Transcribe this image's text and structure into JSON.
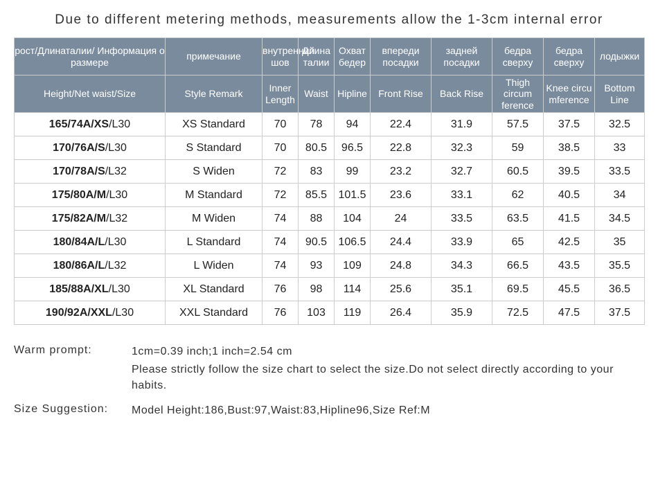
{
  "title": "Due to different metering methods, measurements allow the 1-3cm internal error",
  "colors": {
    "header_bg": "#7a8b9e",
    "header_text": "#ffffff",
    "border": "#cccccc",
    "cell_bg": "#ffffff",
    "cell_text": "#222222",
    "title_text": "#333333"
  },
  "columns": {
    "ru": [
      "рост/Длинаталии/ Информация о размере",
      "примечание",
      "внутренний шов",
      "Длина талии",
      "Охват бедер",
      "впереди посадки",
      "задней посадки",
      "бедра сверху",
      "бедра сверху",
      "лодыжки"
    ],
    "en": [
      "Height/Net waist/Size",
      "Style Remark",
      "Inner Length",
      "Waist",
      "Hipline",
      "Front Rise",
      "Back Rise",
      "Thigh circum ference",
      "Knee circu mference",
      "Bottom Line"
    ]
  },
  "rows": [
    {
      "size_main": "165/74A/XS",
      "size_suffix": "/L30",
      "remark": "XS Standard",
      "inner": "70",
      "waist": "78",
      "hip": "94",
      "front": "22.4",
      "back": "31.9",
      "thigh": "57.5",
      "knee": "37.5",
      "bottom": "32.5"
    },
    {
      "size_main": "170/76A/S",
      "size_suffix": "/L30",
      "remark": "S Standard",
      "inner": "70",
      "waist": "80.5",
      "hip": "96.5",
      "front": "22.8",
      "back": "32.3",
      "thigh": "59",
      "knee": "38.5",
      "bottom": "33"
    },
    {
      "size_main": "170/78A/S",
      "size_suffix": "/L32",
      "remark": "S Widen",
      "inner": "72",
      "waist": "83",
      "hip": "99",
      "front": "23.2",
      "back": "32.7",
      "thigh": "60.5",
      "knee": "39.5",
      "bottom": "33.5"
    },
    {
      "size_main": "175/80A/M",
      "size_suffix": "/L30",
      "remark": "M Standard",
      "inner": "72",
      "waist": "85.5",
      "hip": "101.5",
      "front": "23.6",
      "back": "33.1",
      "thigh": "62",
      "knee": "40.5",
      "bottom": "34"
    },
    {
      "size_main": "175/82A/M",
      "size_suffix": "/L32",
      "remark": "M Widen",
      "inner": "74",
      "waist": "88",
      "hip": "104",
      "front": "24",
      "back": "33.5",
      "thigh": "63.5",
      "knee": "41.5",
      "bottom": "34.5"
    },
    {
      "size_main": "180/84A/L",
      "size_suffix": "/L30",
      "remark": "L Standard",
      "inner": "74",
      "waist": "90.5",
      "hip": "106.5",
      "front": "24.4",
      "back": "33.9",
      "thigh": "65",
      "knee": "42.5",
      "bottom": "35"
    },
    {
      "size_main": "180/86A/L",
      "size_suffix": "/L32",
      "remark": "L Widen",
      "inner": "74",
      "waist": "93",
      "hip": "109",
      "front": "24.8",
      "back": "34.3",
      "thigh": "66.5",
      "knee": "43.5",
      "bottom": "35.5"
    },
    {
      "size_main": "185/88A/XL",
      "size_suffix": "/L30",
      "remark": "XL Standard",
      "inner": "76",
      "waist": "98",
      "hip": "114",
      "front": "25.6",
      "back": "35.1",
      "thigh": "69.5",
      "knee": "45.5",
      "bottom": "36.5"
    },
    {
      "size_main": "190/92A/XXL",
      "size_suffix": "/L30",
      "remark": "XXL Standard",
      "inner": "76",
      "waist": "103",
      "hip": "119",
      "front": "26.4",
      "back": "35.9",
      "thigh": "72.5",
      "knee": "47.5",
      "bottom": "37.5"
    }
  ],
  "footer": {
    "warm_prompt_label": "Warm prompt:",
    "warm_prompt_line1": "1cm=0.39 inch;1 inch=2.54 cm",
    "warm_prompt_line2": "Please strictly follow the size chart  to select the size.Do not select directly according to your habits.",
    "size_suggestion_label": "Size Suggestion:",
    "size_suggestion_text": "Model Height:186,Bust:97,Waist:83,Hipline96,Size Ref:M"
  }
}
